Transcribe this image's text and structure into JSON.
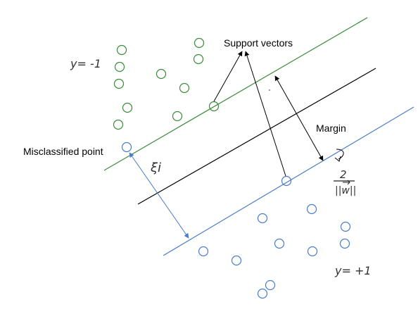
{
  "labels": {
    "support_vectors": "Support vectors",
    "margin": "Margin",
    "misclassified_point": "Misclassified point",
    "class_negative": "y= -1",
    "class_positive": "y= +1",
    "slack": "ξi",
    "margin_formula_numerator": "2",
    "margin_formula_denominator": "||w||"
  },
  "colors": {
    "negative_class": "#3a8a3a",
    "positive_class": "#4a7cc8",
    "decision_boundary": "#000000",
    "arrows": "#000000",
    "slack_arrow": "#4a7cc8",
    "negative_margin_line": "#3a8a3a",
    "positive_margin_line": "#4a7cc8"
  },
  "icons": {
    "data_point": "hollow-circle-icon",
    "arrow": "arrow-icon"
  }
}
